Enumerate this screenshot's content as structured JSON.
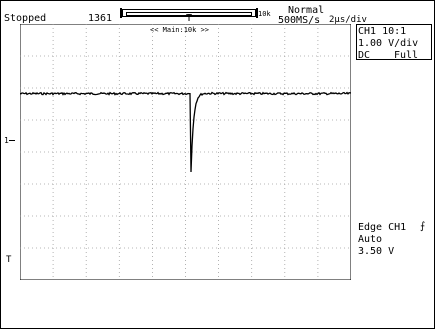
{
  "status": {
    "acq_state": "Stopped",
    "acq_count": "1361",
    "trigger_mode": "Normal",
    "sample_rate": "500MS/s",
    "time_div": "2μs/div",
    "record_length": "10k"
  },
  "zoom_label": "<< Main:10k >>",
  "channel": {
    "name": "CH1 10:1",
    "scale": "1.00 V/div",
    "coupling": "DC",
    "bandwidth": "Full"
  },
  "trigger": {
    "type": "Edge CH1",
    "mode": "Auto",
    "level": "3.50 V"
  },
  "markers": {
    "channel_marker": "1",
    "trigger_marker": "T"
  },
  "waveform": {
    "baseline_level_fraction": 0.272,
    "dip_position_fraction": 0.512,
    "dip_depth_fraction": 0.575
  },
  "colors": {
    "grid": "#a0a0a0",
    "trace": "#000000",
    "background": "#ffffff"
  }
}
